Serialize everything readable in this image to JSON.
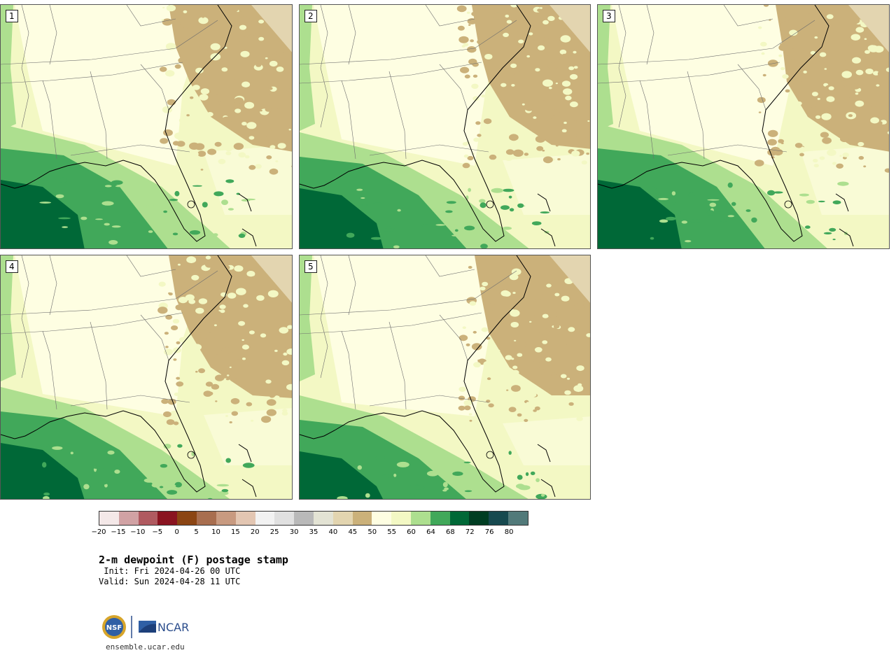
{
  "panels": [
    {
      "number": "1"
    },
    {
      "number": "2"
    },
    {
      "number": "3"
    },
    {
      "number": "4"
    },
    {
      "number": "5"
    }
  ],
  "colorbar": {
    "colors": [
      "#f4e8e8",
      "#d1a2a4",
      "#b05a60",
      "#8a1420",
      "#8b4513",
      "#a86e4f",
      "#c89a80",
      "#e3c6b2",
      "#f2f2f2",
      "#e0e0e0",
      "#b9b9b9",
      "#e3e3d4",
      "#e3d5b0",
      "#cbb17a",
      "#fefee2",
      "#f3f8c4",
      "#addf8f",
      "#41a85a",
      "#006837",
      "#003d22",
      "#17494f",
      "#527a7a"
    ],
    "ticks": [
      "-20",
      "-15",
      "-10",
      "-5",
      "0",
      "5",
      "10",
      "15",
      "20",
      "25",
      "30",
      "35",
      "40",
      "45",
      "50",
      "55",
      "60",
      "64",
      "68",
      "72",
      "76",
      "80"
    ]
  },
  "title": "2-m dewpoint (F) postage stamp",
  "init_text": " Init: Fri 2024-04-26 00 UTC",
  "valid_text": "Valid: Sun 2024-04-28 11 UTC",
  "logo": {
    "nsf": "NSF",
    "ncar": "NCAR"
  },
  "website": "ensemble.ucar.edu"
}
